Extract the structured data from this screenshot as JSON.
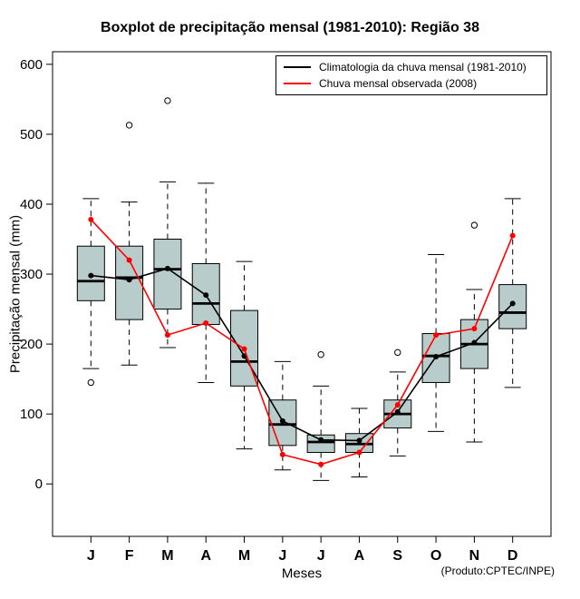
{
  "title": "Boxplot de precipitação mensal (1981-2010): Região 38",
  "chart_data": {
    "type": "boxplot",
    "title": "Boxplot de precipitação mensal (1981-2010): Região 38",
    "xlabel": "Meses",
    "ylabel": "Precipitação mensal (mm)",
    "annotation": "(Produto:CPTEC/INPE)",
    "categories": [
      "J",
      "F",
      "M",
      "A",
      "M",
      "J",
      "J",
      "A",
      "S",
      "O",
      "N",
      "D"
    ],
    "yticks": [
      0,
      100,
      200,
      300,
      400,
      500,
      600
    ],
    "ylim": [
      -75,
      618
    ],
    "grid": false,
    "legend_position": "top-right",
    "box_fill": "#b9cccc",
    "box_stroke": "#000000",
    "boxes": [
      {
        "low": 165,
        "q1": 262,
        "median": 290,
        "q3": 340,
        "high": 408,
        "outliers": [
          145
        ]
      },
      {
        "low": 170,
        "q1": 235,
        "median": 295,
        "q3": 340,
        "high": 403,
        "outliers": [
          513
        ]
      },
      {
        "low": 195,
        "q1": 250,
        "median": 307,
        "q3": 350,
        "high": 432,
        "outliers": [
          548
        ]
      },
      {
        "low": 145,
        "q1": 228,
        "median": 258,
        "q3": 315,
        "high": 430,
        "outliers": []
      },
      {
        "low": 50,
        "q1": 140,
        "median": 175,
        "q3": 248,
        "high": 318,
        "outliers": []
      },
      {
        "low": 20,
        "q1": 55,
        "median": 85,
        "q3": 120,
        "high": 175,
        "outliers": []
      },
      {
        "low": 5,
        "q1": 45,
        "median": 60,
        "q3": 70,
        "high": 140,
        "outliers": [
          185
        ]
      },
      {
        "low": 10,
        "q1": 45,
        "median": 57,
        "q3": 72,
        "high": 108,
        "outliers": []
      },
      {
        "low": 40,
        "q1": 80,
        "median": 100,
        "q3": 120,
        "high": 160,
        "outliers": [
          188
        ]
      },
      {
        "low": 75,
        "q1": 145,
        "median": 183,
        "q3": 215,
        "high": 328,
        "outliers": []
      },
      {
        "low": 60,
        "q1": 165,
        "median": 200,
        "q3": 235,
        "high": 278,
        "outliers": [
          370
        ]
      },
      {
        "low": 138,
        "q1": 222,
        "median": 245,
        "q3": 285,
        "high": 408,
        "outliers": []
      }
    ],
    "series": [
      {
        "name": "Climatologia da chuva mensal (1981-2010)",
        "color": "#000000",
        "values": [
          298,
          292,
          308,
          270,
          183,
          90,
          63,
          62,
          103,
          182,
          202,
          258
        ]
      },
      {
        "name": "Chuva mensal observada (2008)",
        "color": "#ff0000",
        "values": [
          378,
          320,
          213,
          230,
          193,
          42,
          28,
          45,
          113,
          213,
          222,
          355
        ]
      }
    ]
  }
}
